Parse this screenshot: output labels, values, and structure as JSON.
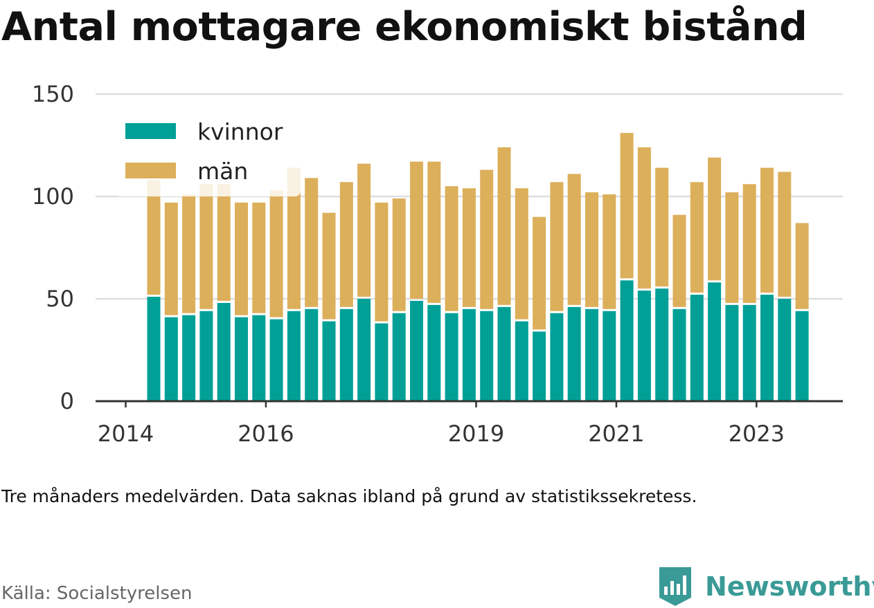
{
  "header": {
    "title": "Antal mottagare ekonomiskt bistånd"
  },
  "footer": {
    "note": "Tre månaders medelvärden. Data saknas ibland på grund av statistikssekretess.",
    "source": "Källa: Socialstyrelsen",
    "brand": "Newsworthy"
  },
  "chart_data": {
    "type": "bar",
    "stacked": true,
    "x": [
      "2014-Q2",
      "2014-Q3",
      "2014-Q4",
      "2015-Q1",
      "2015-Q2",
      "2015-Q3",
      "2015-Q4",
      "2016-Q1",
      "2016-Q2",
      "2016-Q3",
      "2016-Q4",
      "2017-Q1",
      "2017-Q2",
      "2017-Q3",
      "2017-Q4",
      "2018-Q1",
      "2018-Q2",
      "2018-Q3",
      "2018-Q4",
      "2019-Q1",
      "2019-Q2",
      "2019-Q3",
      "2019-Q4",
      "2020-Q1",
      "2020-Q2",
      "2020-Q3",
      "2020-Q4",
      "2021-Q1",
      "2021-Q2",
      "2021-Q3",
      "2021-Q4",
      "2022-Q1",
      "2022-Q2",
      "2022-Q3",
      "2022-Q4",
      "2023-Q1",
      "2023-Q2",
      "2023-Q3"
    ],
    "x_ticks": [
      "2014",
      "2016",
      "2019",
      "2021",
      "2023"
    ],
    "y_ticks": [
      0,
      50,
      100,
      150
    ],
    "ylim": [
      0,
      150
    ],
    "grid": true,
    "legend_position": "top-left",
    "series": [
      {
        "name": "kvinnor",
        "color": "#00a096",
        "values": [
          51,
          41,
          42,
          44,
          48,
          41,
          42,
          40,
          44,
          45,
          39,
          45,
          50,
          38,
          43,
          49,
          47,
          43,
          45,
          44,
          46,
          39,
          34,
          43,
          46,
          45,
          44,
          59,
          54,
          55,
          45,
          52,
          58,
          47,
          47,
          52,
          50,
          44
        ]
      },
      {
        "name": "män",
        "color": "#dcaf5a",
        "values": [
          57,
          56,
          59,
          62,
          58,
          56,
          55,
          63,
          70,
          64,
          53,
          62,
          66,
          59,
          56,
          68,
          70,
          62,
          59,
          69,
          78,
          65,
          56,
          64,
          65,
          57,
          57,
          72,
          70,
          59,
          46,
          55,
          61,
          55,
          59,
          62,
          62,
          43
        ]
      }
    ]
  }
}
